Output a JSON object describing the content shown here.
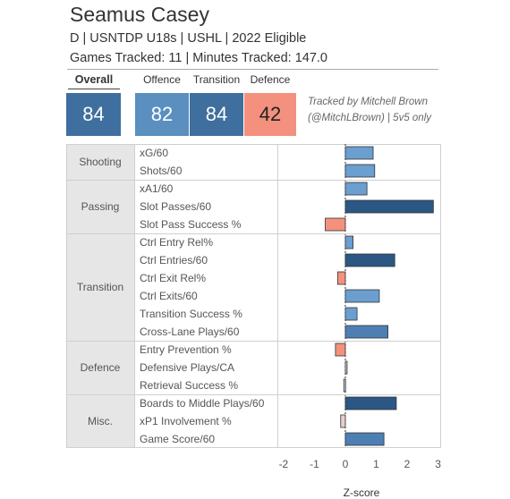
{
  "header": {
    "player_name": "Seamus Casey",
    "line1": "D | USNTDP U18s | USHL | 2022 Eligible",
    "line2": "Games Tracked: 11 | Minutes Tracked: 147.0"
  },
  "tiles": {
    "overall": {
      "label": "Overall",
      "value": "84",
      "color": "#3f6f9e"
    },
    "offence": {
      "label": "Offence",
      "value": "82",
      "color": "#5a8fc0"
    },
    "transition": {
      "label": "Transition",
      "value": "84",
      "color": "#3f6f9e"
    },
    "defence": {
      "label": "Defence",
      "value": "42",
      "color": "#f4917e"
    }
  },
  "tracked_by": {
    "line1": "Tracked by Mitchell Brown",
    "line2": "(@MitchLBrown) | 5v5 only"
  },
  "chart_data": {
    "type": "bar",
    "orientation": "horizontal",
    "xlabel": "Z-score",
    "xlim": [
      -2.2,
      3.1
    ],
    "ticks": [
      "-2",
      "-1",
      "0",
      "1",
      "2",
      "3"
    ],
    "tick_values": [
      -2,
      -1,
      0,
      1,
      2,
      3
    ],
    "zero_line": "dashed",
    "groups": [
      {
        "name": "Shooting",
        "metrics": [
          {
            "name": "xG/60",
            "value": 0.9,
            "color": "#6a9fcf"
          },
          {
            "name": "Shots/60",
            "value": 0.95,
            "color": "#6a9fcf"
          }
        ]
      },
      {
        "name": "Passing",
        "metrics": [
          {
            "name": "xA1/60",
            "value": 0.7,
            "color": "#6a9fcf"
          },
          {
            "name": "Slot Passes/60",
            "value": 2.85,
            "color": "#2b5785"
          },
          {
            "name": "Slot Pass Success %",
            "value": -0.65,
            "color": "#f4917e"
          }
        ]
      },
      {
        "name": "Transition",
        "metrics": [
          {
            "name": "Ctrl Entry Rel%",
            "value": 0.25,
            "color": "#6a9fcf"
          },
          {
            "name": "Ctrl Entries/60",
            "value": 1.6,
            "color": "#2b5785"
          },
          {
            "name": "Ctrl Exit Rel%",
            "value": -0.25,
            "color": "#f4917e"
          },
          {
            "name": "Ctrl Exits/60",
            "value": 1.1,
            "color": "#6a9fcf"
          },
          {
            "name": "Transition Success %",
            "value": 0.38,
            "color": "#6a9fcf"
          },
          {
            "name": "Cross-Lane Plays/60",
            "value": 1.38,
            "color": "#4d7fb3"
          }
        ]
      },
      {
        "name": "Defence",
        "metrics": [
          {
            "name": "Entry Prevention %",
            "value": -0.32,
            "color": "#f4917e"
          },
          {
            "name": "Defensive Plays/CA",
            "value": 0.05,
            "color": "#cccccc"
          },
          {
            "name": "Retrieval Success %",
            "value": -0.05,
            "color": "#cccccc"
          }
        ]
      },
      {
        "name": "Misc.",
        "metrics": [
          {
            "name": "Boards to Middle Plays/60",
            "value": 1.65,
            "color": "#2b5785"
          },
          {
            "name": "xP1 Involvement %",
            "value": -0.15,
            "color": "#e8cfcc"
          },
          {
            "name": "Game Score/60",
            "value": 1.25,
            "color": "#4d7fb3"
          }
        ]
      }
    ]
  }
}
